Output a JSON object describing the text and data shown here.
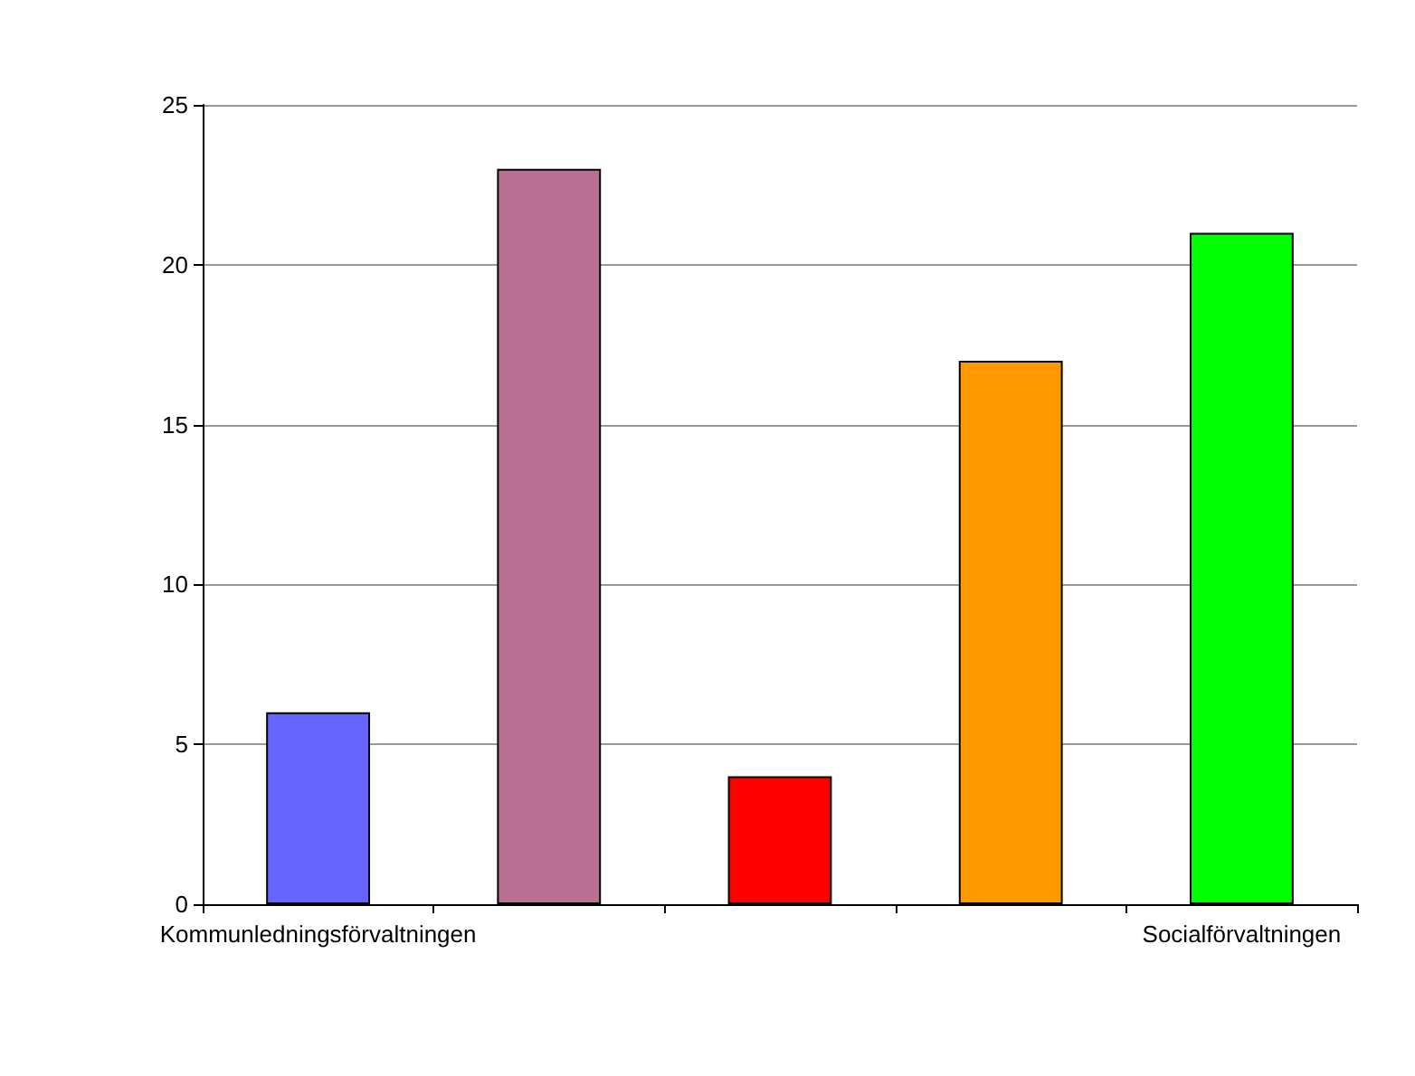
{
  "chart_data": {
    "type": "bar",
    "categories": [
      "Kommunledningsförvaltningen",
      null,
      null,
      null,
      "Socialförvaltningen"
    ],
    "values": [
      6,
      23,
      4,
      17,
      21
    ],
    "colors": [
      "#6666ff",
      "#b87093",
      "#ff0000",
      "#ff9900",
      "#00ff00"
    ],
    "ylim": [
      0,
      25
    ],
    "yticks": [
      0,
      5,
      10,
      15,
      20,
      25
    ],
    "grid": "y"
  }
}
